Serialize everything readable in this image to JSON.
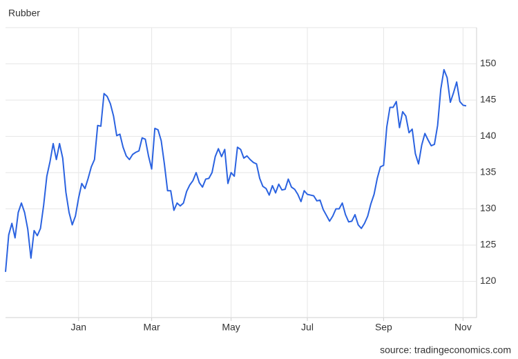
{
  "chart_data": {
    "type": "line",
    "title": "Rubber",
    "source": "source: tradingeconomics.com",
    "categories": [
      null,
      null,
      null,
      null,
      null,
      null,
      null,
      null,
      null,
      null,
      null,
      null,
      null,
      null,
      null,
      null,
      null,
      null,
      null,
      null,
      null,
      null,
      null,
      "Jan",
      null,
      null,
      null,
      null,
      null,
      null,
      null,
      null,
      null,
      null,
      null,
      null,
      null,
      null,
      null,
      null,
      null,
      null,
      null,
      null,
      null,
      null,
      "Mar",
      null,
      null,
      null,
      null,
      null,
      null,
      null,
      null,
      null,
      null,
      null,
      null,
      null,
      null,
      null,
      null,
      null,
      null,
      null,
      null,
      null,
      null,
      null,
      null,
      "May",
      null,
      null,
      null,
      null,
      null,
      null,
      null,
      null,
      null,
      null,
      null,
      null,
      null,
      null,
      null,
      null,
      null,
      null,
      null,
      null,
      null,
      null,
      null,
      "Jul",
      null,
      null,
      null,
      null,
      null,
      null,
      null,
      null,
      null,
      null,
      null,
      null,
      null,
      null,
      null,
      null,
      null,
      null,
      null,
      null,
      null,
      null,
      null,
      "Sep",
      null,
      null,
      null,
      null,
      null,
      null,
      null,
      null,
      null,
      null,
      null,
      null,
      null,
      null,
      null,
      null,
      null,
      null,
      null,
      null,
      null,
      null,
      null,
      null,
      "Nov",
      null
    ],
    "series": [
      {
        "name": "Rubber",
        "color": "#2a62e0",
        "values": [
          121.3,
          126.4,
          128,
          126,
          129.5,
          130.8,
          129.5,
          127.2,
          123.2,
          127,
          126.3,
          127.3,
          130.5,
          134.5,
          136.5,
          139,
          136.8,
          139,
          137,
          132.3,
          129.5,
          127.8,
          129,
          131.5,
          133.5,
          132.8,
          134.2,
          135.8,
          136.8,
          141.5,
          141.4,
          145.9,
          145.5,
          144.5,
          142.8,
          140.1,
          140.3,
          138.5,
          137.3,
          136.8,
          137.5,
          137.8,
          138,
          139.8,
          139.6,
          137.3,
          135.5,
          141.1,
          140.9,
          139.4,
          136.2,
          132.5,
          132.5,
          129.8,
          130.8,
          130.4,
          130.8,
          132.4,
          133.3,
          133.9,
          135,
          133.6,
          133,
          134.1,
          134.2,
          135,
          137.2,
          138.3,
          137.2,
          138.2,
          133.5,
          135,
          134.5,
          138.5,
          138.2,
          137,
          137.3,
          136.8,
          136.4,
          136.2,
          134.2,
          133.1,
          132.8,
          131.9,
          133.2,
          132.2,
          133.4,
          132.6,
          132.7,
          134.1,
          133,
          132.7,
          132,
          131,
          132.5,
          132,
          131.9,
          131.8,
          131.1,
          131.2,
          129.9,
          129.1,
          128.3,
          129,
          130,
          130,
          130.8,
          129.2,
          128.2,
          128.3,
          129.2,
          127.8,
          127.3,
          128,
          129,
          130.7,
          132,
          134.2,
          135.8,
          136,
          141.3,
          144,
          144,
          144.8,
          141.2,
          143.4,
          142.8,
          140.5,
          141,
          137.6,
          136.2,
          138.8,
          140.4,
          139.5,
          138.7,
          138.9,
          141.5,
          146.5,
          149.2,
          148.1,
          144.7,
          146,
          147.5,
          144.8,
          144.3,
          144.2
        ]
      }
    ],
    "ylim": [
      115,
      155
    ],
    "yticks": [
      120,
      125,
      130,
      135,
      140,
      145,
      150
    ],
    "grid": true
  }
}
